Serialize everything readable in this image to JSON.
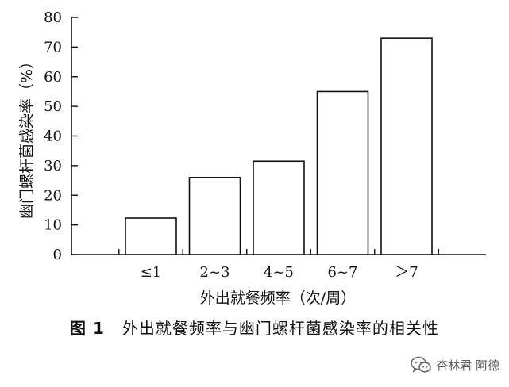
{
  "chart_data": {
    "type": "bar",
    "categories": [
      "≤1",
      "2~3",
      "4~5",
      "6~7",
      "＞7"
    ],
    "values": [
      12.3,
      26,
      31.5,
      55,
      73
    ],
    "xlabel": "外出就餐频率（次/周）",
    "ylabel": "幽门螺杆菌感染率（%）",
    "ylim": [
      0,
      80
    ],
    "yticks": [
      0,
      10,
      20,
      30,
      40,
      50,
      60,
      70,
      80
    ],
    "grid": false,
    "bar_fill": "#ffffff",
    "bar_stroke": "#111111"
  },
  "caption": {
    "label": "图 1",
    "text": "外出就餐频率与幽门螺杆菌感染率的相关性"
  },
  "watermark": {
    "icon": "wechat-icon",
    "text": "杏林君 阿德"
  }
}
